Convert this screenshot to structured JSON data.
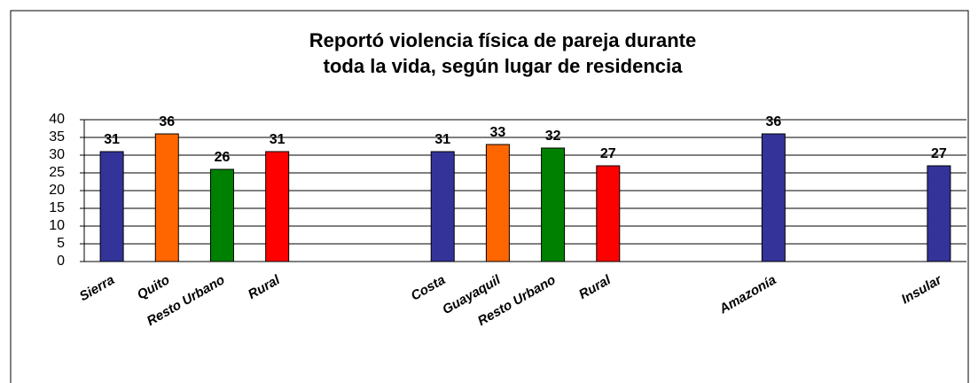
{
  "chart_data": {
    "type": "bar",
    "title": [
      "Reportó violencia física de pareja durante",
      "toda la vida, según lugar de residencia"
    ],
    "categories": [
      "Sierra",
      "Quito",
      "Resto Urbano",
      "Rural",
      null,
      null,
      "Costa",
      "Guayaquil",
      "Resto Urbano",
      "Rural",
      null,
      null,
      "Amazonía",
      null,
      null,
      "Insular"
    ],
    "values": [
      31,
      36,
      26,
      31,
      null,
      null,
      31,
      33,
      32,
      27,
      null,
      null,
      36,
      null,
      null,
      27
    ],
    "colors": [
      "#333399",
      "#ff6600",
      "#008000",
      "#ff0000",
      null,
      null,
      "#333399",
      "#ff6600",
      "#008000",
      "#ff0000",
      null,
      null,
      "#333399",
      null,
      null,
      "#333399"
    ],
    "ylim": [
      0,
      40
    ],
    "yticks": [
      0,
      5,
      10,
      15,
      20,
      25,
      30,
      35,
      40
    ],
    "grid": true
  }
}
